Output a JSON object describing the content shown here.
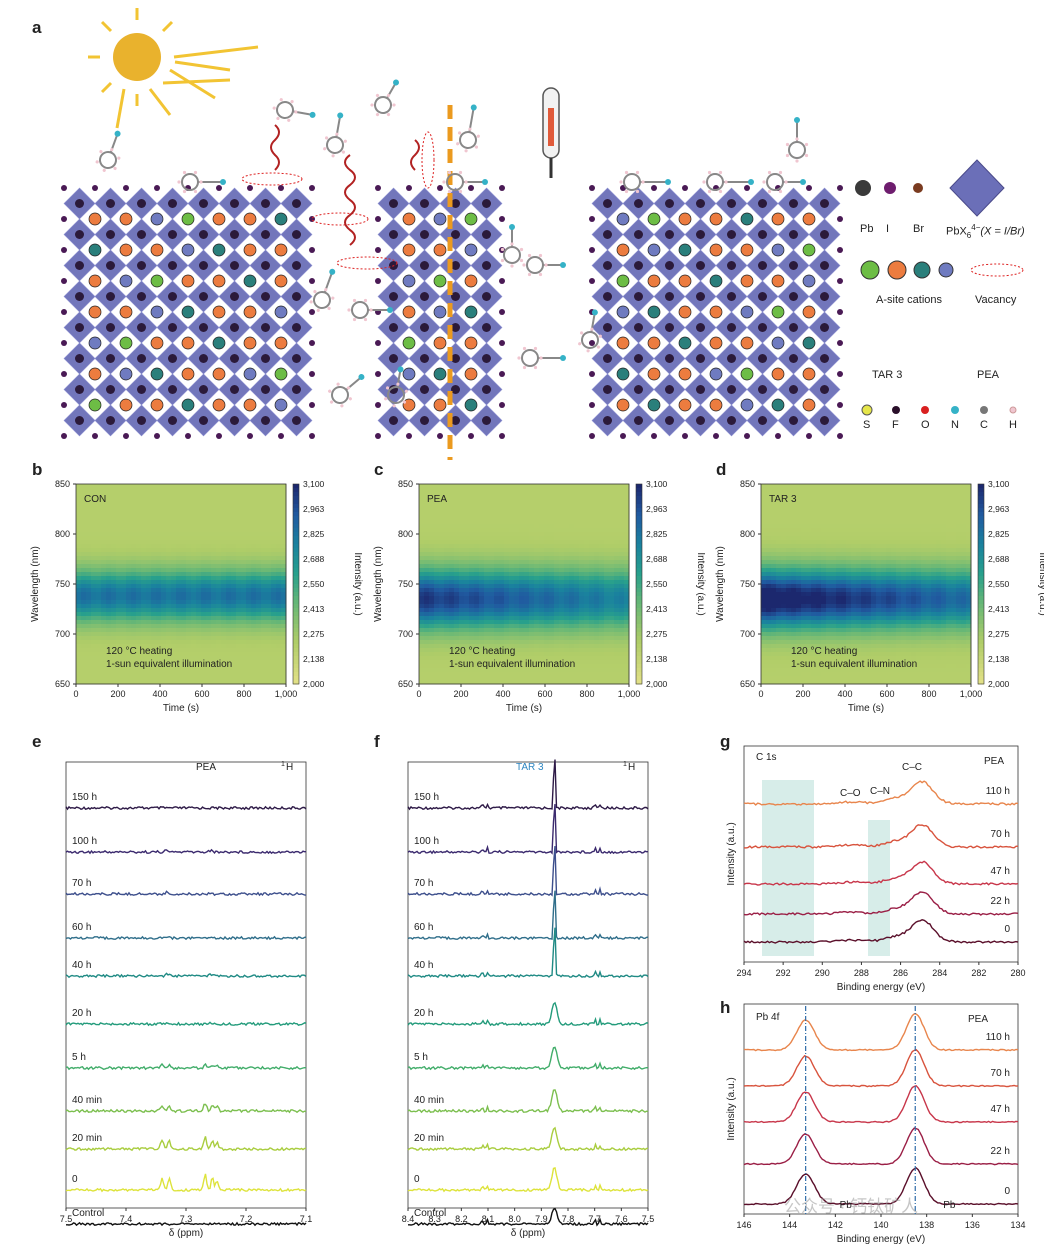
{
  "panels": {
    "a": "a",
    "b": "b",
    "c": "c",
    "d": "d",
    "e": "e",
    "f": "f",
    "g": "g",
    "h": "h"
  },
  "legend": {
    "pb": "Pb",
    "i": "I",
    "br": "Br",
    "oct": "PbX",
    "oct_sub": "6",
    "oct_sup": "4−",
    "oct_rest": "(X = I/Br)",
    "acation": "A-site cations",
    "vacancy": "Vacancy",
    "tar3": "TAR 3",
    "pea": "PEA",
    "s": "S",
    "f": "F",
    "o": "O",
    "n": "N",
    "c": "C",
    "h": "H"
  },
  "heatmaps": [
    {
      "tag": "CON",
      "note1": "120 °C heating",
      "note2": "1-sun equivalent illumination",
      "xlabel": "Time (s)",
      "ylabel": "Wavelength (nm)",
      "cblabel": "Intensity (a.u.)"
    },
    {
      "tag": "PEA",
      "note1": "120 °C heating",
      "note2": "1-sun equivalent illumination",
      "xlabel": "Time (s)",
      "ylabel": "Wavelength (nm)",
      "cblabel": "Intensity (a.u.)"
    },
    {
      "tag": "TAR 3",
      "note1": "120 °C heating",
      "note2": "1-sun equivalent illumination",
      "xlabel": "Time (s)",
      "ylabel": "Wavelength (nm)",
      "cblabel": "Intensity (a.u.)"
    }
  ],
  "heat_yticks": [
    "850",
    "800",
    "750",
    "700",
    "650"
  ],
  "heat_xticks": [
    "0",
    "200",
    "400",
    "600",
    "800",
    "1,000"
  ],
  "cb_ticks": [
    "3,100",
    "2,963",
    "2,825",
    "2,688",
    "2,550",
    "2,413",
    "2,275",
    "2,138",
    "2,000"
  ],
  "nmr_e": {
    "tag": "PEA",
    "nucleus": "1H",
    "xlabel": "δ (ppm)",
    "xticks": [
      "7.5",
      "7.4",
      "7.3",
      "7.2",
      "7.1"
    ],
    "labels": [
      "150 h",
      "100 h",
      "70 h",
      "60 h",
      "40 h",
      "20 h",
      "5 h",
      "40 min",
      "20 min",
      "0",
      "Control"
    ]
  },
  "nmr_f": {
    "tag": "TAR 3",
    "nucleus": "1H",
    "xlabel": "δ (ppm)",
    "xticks": [
      "8.4",
      "8.3",
      "8.2",
      "8.1",
      "8.0",
      "7.9",
      "7.8",
      "7.7",
      "7.6",
      "7.5"
    ],
    "labels": [
      "150 h",
      "100 h",
      "70 h",
      "60 h",
      "40 h",
      "20 h",
      "5 h",
      "40 min",
      "20 min",
      "0",
      "Control"
    ]
  },
  "xps_g": {
    "title": "C 1s",
    "tag": "PEA",
    "peak_cc": "C–C",
    "peak_co": "C–O",
    "peak_cn": "C–N",
    "ylabel": "Intensity (a.u.)",
    "xlabel": "Binding energy (eV)",
    "xticks": [
      "294",
      "292",
      "290",
      "288",
      "286",
      "284",
      "282",
      "280"
    ],
    "labels": [
      "110 h",
      "70 h",
      "47 h",
      "22 h",
      "0"
    ]
  },
  "xps_h": {
    "title": "Pb 4f",
    "tag": "PEA",
    "ylabel": "Intensity (a.u.)",
    "xlabel": "Binding energy (eV)",
    "xticks": [
      "146",
      "144",
      "142",
      "140",
      "138",
      "136",
      "134"
    ],
    "labels": [
      "110 h",
      "70 h",
      "47 h",
      "22 h",
      "0"
    ],
    "pbo": "Pb"
  },
  "watermark": "公众号 · 钙钛矿人",
  "colors": {
    "octa": "#6b6fb8",
    "pbdot": "#4a1a55",
    "orange": "#ec7c3f",
    "green": "#6dbd45",
    "teal": "#2a7f7b",
    "blue": "#6f7bc0"
  }
}
